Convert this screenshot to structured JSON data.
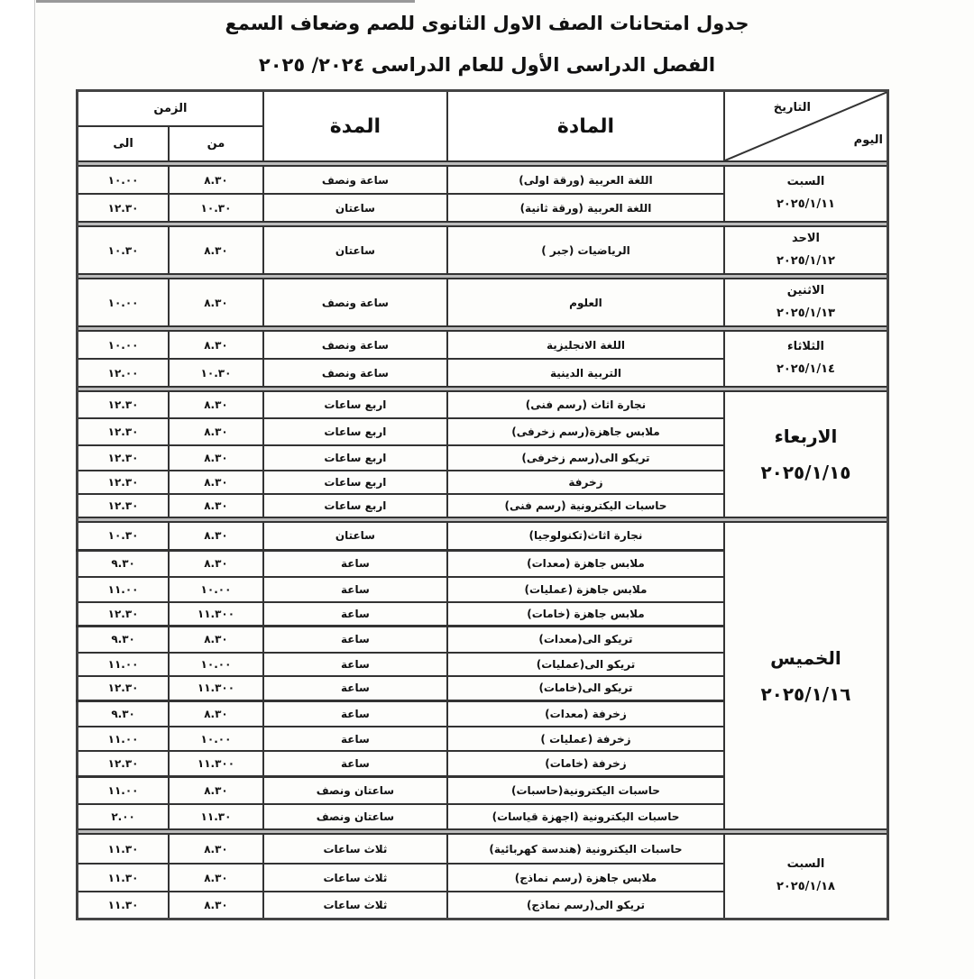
{
  "title": "جدول امتحانات الصف الاول الثانوى للصم وضعاف السمع",
  "subtitle": "الفصل الدراسى الأول للعام الدراسى   ٢٠٢٤/ ٢٠٢٥",
  "headers": {
    "date": "التاريخ",
    "day": "اليوم",
    "subject": "المادة",
    "duration": "المدة",
    "time": "الزمن",
    "from": "من",
    "to": "الى"
  },
  "groups": [
    {
      "day": "السبت",
      "date": "٢٠٢٥/١/١١",
      "big": false,
      "rows": [
        {
          "subject": "اللغة العربية (ورقة اولى)",
          "duration": "ساعة ونصف",
          "from": "٨.٣٠",
          "to": "١٠.٠٠"
        },
        {
          "subject": "اللغة العربية (ورقة ثانية)",
          "duration": "ساعتان",
          "from": "١٠.٣٠",
          "to": "١٢.٣٠"
        }
      ]
    },
    {
      "day": "الاحد",
      "date": "٢٠٢٥/١/١٢",
      "big": false,
      "rows": [
        {
          "subject": "الرياضيات (جبر )",
          "duration": "ساعتان",
          "from": "٨.٣٠",
          "to": "١٠.٣٠"
        }
      ]
    },
    {
      "day": "الاثنين",
      "date": "٢٠٢٥/١/١٣",
      "big": false,
      "rows": [
        {
          "subject": "العلوم",
          "duration": "ساعة ونصف",
          "from": "٨.٣٠",
          "to": "١٠.٠٠"
        }
      ]
    },
    {
      "day": "الثلاثاء",
      "date": "٢٠٢٥/١/١٤",
      "big": false,
      "rows": [
        {
          "subject": "اللغة الانجليزية",
          "duration": "ساعة ونصف",
          "from": "٨.٣٠",
          "to": "١٠.٠٠"
        },
        {
          "subject": "التربية الدينية",
          "duration": "ساعة ونصف",
          "from": "١٠.٣٠",
          "to": "١٢.٠٠"
        }
      ]
    },
    {
      "day": "الاربعاء",
      "date": "٢٠٢٥/١/١٥",
      "big": true,
      "rows": [
        {
          "subject": "نجارة اثاث (رسم فنى)",
          "duration": "اربع ساعات",
          "from": "٨.٣٠",
          "to": "١٢.٣٠"
        },
        {
          "subject": "ملابس جاهزة(رسم زخرفى)",
          "duration": "اربع ساعات",
          "from": "٨.٣٠",
          "to": "١٢.٣٠"
        },
        {
          "subject": "تريكو الى(رسم زخرفى)",
          "duration": "اربع ساعات",
          "from": "٨.٣٠",
          "to": "١٢.٣٠"
        },
        {
          "subject": "زخرفة",
          "duration": "اربع ساعات",
          "from": "٨.٣٠",
          "to": "١٢.٣٠"
        },
        {
          "subject": "حاسبات اليكترونية (رسم فنى)",
          "duration": "اربع ساعات",
          "from": "٨.٣٠",
          "to": "١٢.٣٠"
        }
      ]
    },
    {
      "day": "الخميس",
      "date": "٢٠٢٥/١/١٦",
      "big": true,
      "rows": [
        {
          "subject": "نجارة اثاث(تكنولوجيا)",
          "duration": "ساعتان",
          "from": "٨.٣٠",
          "to": "١٠.٣٠",
          "sep": true
        },
        {
          "subject": "ملابس جاهزة (معدات)",
          "duration": "ساعة",
          "from": "٨.٣٠",
          "to": "٩.٣٠"
        },
        {
          "subject": "ملابس جاهزة (عمليات)",
          "duration": "ساعة",
          "from": "١٠.٠٠",
          "to": "١١.٠٠"
        },
        {
          "subject": "ملابس جاهزة (خامات)",
          "duration": "ساعة",
          "from": "١١.٣٠٠",
          "to": "١٢.٣٠",
          "sep": true
        },
        {
          "subject": "تريكو الى(معدات)",
          "duration": "ساعة",
          "from": "٨.٣٠",
          "to": "٩.٣٠"
        },
        {
          "subject": "تريكو الى(عمليات)",
          "duration": "ساعة",
          "from": "١٠.٠٠",
          "to": "١١.٠٠"
        },
        {
          "subject": "تريكو الى(خامات)",
          "duration": "ساعة",
          "from": "١١.٣٠٠",
          "to": "١٢.٣٠",
          "sep": true
        },
        {
          "subject": "زخرفة (معدات)",
          "duration": "ساعة",
          "from": "٨.٣٠",
          "to": "٩.٣٠"
        },
        {
          "subject": "زخرفة (عمليات )",
          "duration": "ساعة",
          "from": "١٠.٠٠",
          "to": "١١.٠٠"
        },
        {
          "subject": "زخرفة (خامات)",
          "duration": "ساعة",
          "from": "١١.٣٠٠",
          "to": "١٢.٣٠",
          "sep": true
        },
        {
          "subject": "حاسبات اليكترونية(حاسبات)",
          "duration": "ساعتان ونصف",
          "from": "٨.٣٠",
          "to": "١١.٠٠"
        },
        {
          "subject": "حاسبات اليكترونية (اجهزة قياسات)",
          "duration": "ساعتان ونصف",
          "from": "١١.٣٠",
          "to": "٢.٠٠"
        }
      ]
    },
    {
      "day": "السبت",
      "date": "٢٠٢٥/١/١٨",
      "big": false,
      "rows": [
        {
          "subject": "حاسبات اليكترونية (هندسة كهربائية)",
          "duration": "ثلاث ساعات",
          "from": "٨.٣٠",
          "to": "١١.٣٠"
        },
        {
          "subject": "ملابس جاهزة (رسم نماذج)",
          "duration": "ثلاث ساعات",
          "from": "٨.٣٠",
          "to": "١١.٣٠"
        },
        {
          "subject": "تريكو الى(رسم نماذج)",
          "duration": "ثلاث ساعات",
          "from": "٨.٣٠",
          "to": "١١.٣٠"
        }
      ]
    }
  ]
}
